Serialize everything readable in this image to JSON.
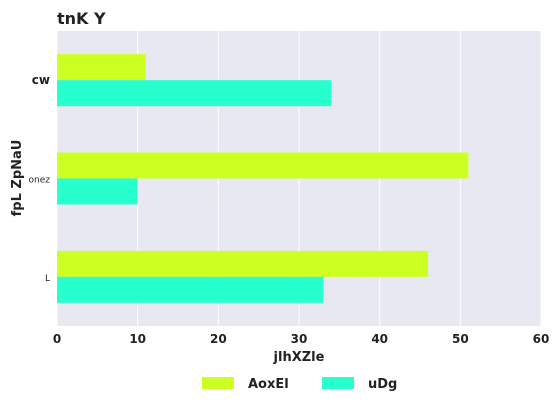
{
  "chart_data": {
    "type": "bar",
    "orientation": "horizontal",
    "title": "tnK Y",
    "xlabel": "jlhXZle",
    "ylabel": "fpL ZpNaU",
    "categories": [
      "cw",
      "onez",
      "L"
    ],
    "series": [
      {
        "name": "AoxEl",
        "values": [
          11,
          51,
          46
        ],
        "color": "#ccff22"
      },
      {
        "name": "uDg",
        "values": [
          34,
          10,
          33
        ],
        "color": "#27ffcf"
      }
    ],
    "xlim": [
      0,
      60
    ],
    "xticks": [
      "0",
      "10",
      "20",
      "30",
      "40",
      "50",
      "60"
    ],
    "grid": true,
    "legend_position": "bottom",
    "plot_background": "#e8e8f2"
  }
}
